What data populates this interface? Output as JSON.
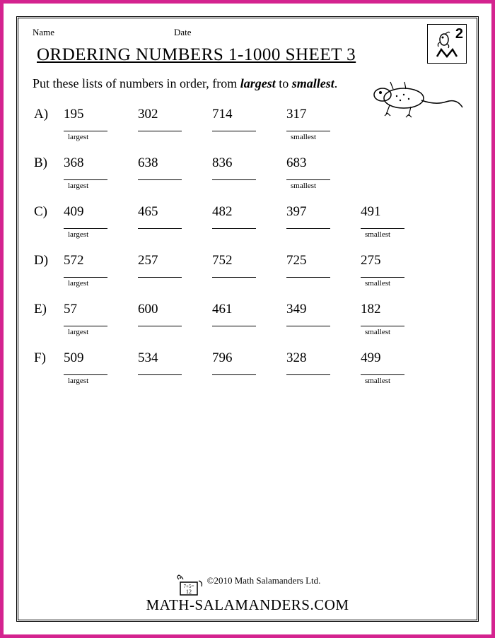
{
  "header": {
    "name_label": "Name",
    "date_label": "Date",
    "grade_number": "2"
  },
  "title": "ORDERING NUMBERS 1-1000 SHEET 3",
  "instructions": {
    "prefix": "Put these lists of numbers in order, from ",
    "word1": "largest",
    "mid": " to ",
    "word2": "smallest",
    "suffix": "."
  },
  "labels": {
    "largest": "largest",
    "smallest": "smallest"
  },
  "problems": [
    {
      "label": "A)",
      "numbers": [
        "195",
        "302",
        "714",
        "317"
      ],
      "slots": 4
    },
    {
      "label": "B)",
      "numbers": [
        "368",
        "638",
        "836",
        "683"
      ],
      "slots": 4
    },
    {
      "label": "C)",
      "numbers": [
        "409",
        "465",
        "482",
        "397",
        "491"
      ],
      "slots": 5
    },
    {
      "label": "D)",
      "numbers": [
        "572",
        "257",
        "752",
        "725",
        "275"
      ],
      "slots": 5
    },
    {
      "label": "E)",
      "numbers": [
        "57",
        "600",
        "461",
        "349",
        "182"
      ],
      "slots": 5
    },
    {
      "label": "F)",
      "numbers": [
        "509",
        "534",
        "796",
        "328",
        "499"
      ],
      "slots": 5
    }
  ],
  "footer": {
    "copyright": "©2010 Math Salamanders Ltd.",
    "site": "math-salamanders.com"
  },
  "colors": {
    "frame": "#d4238f",
    "text": "#000000",
    "background": "#ffffff"
  }
}
